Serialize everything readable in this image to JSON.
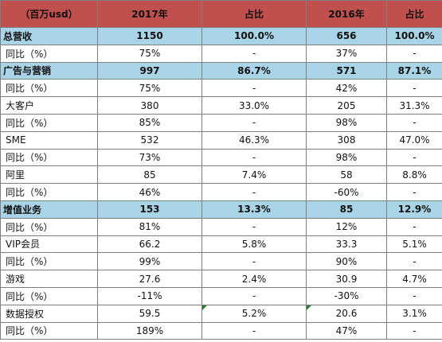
{
  "table": {
    "headers": [
      "（百万usd）",
      "2017年",
      "占比",
      "2016年",
      "占比"
    ],
    "rows": [
      {
        "type": "section",
        "cells": [
          "总营收",
          "1150",
          "100.0%",
          "656",
          "100.0%"
        ]
      },
      {
        "type": "yoy",
        "cells": [
          "同比（%）",
          "75%",
          "-",
          "37%",
          "-"
        ]
      },
      {
        "type": "section",
        "cells": [
          "广告与营销",
          "997",
          "86.7%",
          "571",
          "87.1%"
        ]
      },
      {
        "type": "yoy",
        "cells": [
          "同比（%）",
          "75%",
          "-",
          "42%",
          "-"
        ]
      },
      {
        "type": "item",
        "cells": [
          "大客户",
          "380",
          "33.0%",
          "205",
          "31.3%"
        ]
      },
      {
        "type": "yoy",
        "cells": [
          "同比（%）",
          "85%",
          "-",
          "98%",
          "-"
        ]
      },
      {
        "type": "item",
        "cells": [
          "SME",
          "532",
          "46.3%",
          "308",
          "47.0%"
        ]
      },
      {
        "type": "yoy",
        "cells": [
          "同比（%）",
          "73%",
          "-",
          "98%",
          "-"
        ]
      },
      {
        "type": "item",
        "cells": [
          "阿里",
          "85",
          "7.4%",
          "58",
          "8.8%"
        ]
      },
      {
        "type": "yoy",
        "cells": [
          "同比（%）",
          "46%",
          "-",
          "-60%",
          "-"
        ]
      },
      {
        "type": "section",
        "cells": [
          "增值业务",
          "153",
          "13.3%",
          "85",
          "12.9%"
        ]
      },
      {
        "type": "yoy",
        "cells": [
          "同比（%）",
          "81%",
          "-",
          "12%",
          "-"
        ]
      },
      {
        "type": "item",
        "cells": [
          "VIP会员",
          "66.2",
          "5.8%",
          "33.3",
          "5.1%"
        ]
      },
      {
        "type": "yoy",
        "cells": [
          "同比（%）",
          "99%",
          "-",
          "90%",
          "-"
        ]
      },
      {
        "type": "item",
        "cells": [
          "游戏",
          "27.6",
          "2.4%",
          "30.9",
          "4.7%"
        ]
      },
      {
        "type": "yoy",
        "cells": [
          "同比（%）",
          "-11%",
          "-",
          "-30%",
          "-"
        ]
      },
      {
        "type": "item",
        "cells": [
          "数据授权",
          "59.5",
          "5.2%",
          "20.6",
          "3.1%"
        ],
        "marked": [
          2,
          3
        ]
      },
      {
        "type": "yoy",
        "cells": [
          "同比（%）",
          "189%",
          "-",
          "47%",
          "-"
        ]
      }
    ]
  }
}
